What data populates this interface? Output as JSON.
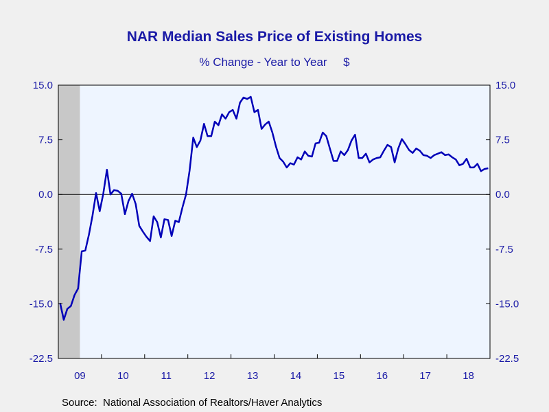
{
  "colors": {
    "page_background": "#f0f0f0",
    "plot_background": "#eef5ff",
    "series_line": "#0000b8",
    "text": "#1a1aa6",
    "recession_shade": "#c8c8c8"
  },
  "chart_data": {
    "type": "line",
    "title": "NAR Median Sales Price of Existing Homes",
    "subtitle": "% Change - Year to Year     $",
    "source": "Source:  National Association of Realtors/Haver Analytics",
    "ylim": [
      -22.5,
      15.0
    ],
    "y_ticks": [
      15.0,
      7.5,
      0.0,
      -7.5,
      -15.0,
      -22.5
    ],
    "y_tick_labels": [
      "15.0",
      "7.5",
      "0.0",
      "-7.5",
      "-15.0",
      "-22.5"
    ],
    "x_tick_labels": [
      "09",
      "10",
      "11",
      "12",
      "13",
      "14",
      "15",
      "16",
      "17",
      "18"
    ],
    "x_range": [
      "2009-01",
      "2018-12"
    ],
    "recession_shading": [
      "2009-01",
      "2009-06"
    ],
    "zero_line": true,
    "grid": false,
    "series": [
      {
        "start": "2009-01",
        "frequency": "monthly",
        "values": [
          -14.9,
          -17.2,
          -15.7,
          -15.3,
          -13.8,
          -12.9,
          -7.8,
          -7.7,
          -5.5,
          -2.9,
          0.2,
          -2.3,
          0.1,
          3.4,
          0.0,
          0.6,
          0.5,
          0.1,
          -2.7,
          -0.9,
          0.1,
          -1.3,
          -4.3,
          -5.1,
          -5.8,
          -6.4,
          -3.0,
          -3.8,
          -5.9,
          -3.4,
          -3.5,
          -5.7,
          -3.6,
          -3.8,
          -1.8,
          0.0,
          3.3,
          7.8,
          6.5,
          7.4,
          9.7,
          8.0,
          8.0,
          10.0,
          9.5,
          11.0,
          10.4,
          11.3,
          11.6,
          10.4,
          12.6,
          13.3,
          13.1,
          13.4,
          11.3,
          11.6,
          9.0,
          9.6,
          10.0,
          8.5,
          6.6,
          5.0,
          4.5,
          3.7,
          4.3,
          4.1,
          5.1,
          4.8,
          5.9,
          5.3,
          5.2,
          7.0,
          7.1,
          8.5,
          8.0,
          6.3,
          4.6,
          4.6,
          5.9,
          5.4,
          6.1,
          7.4,
          8.2,
          5.0,
          5.0,
          5.6,
          4.4,
          4.8,
          5.0,
          5.1,
          6.0,
          6.8,
          6.5,
          4.4,
          6.3,
          7.6,
          6.9,
          6.1,
          5.7,
          6.3,
          6.0,
          5.4,
          5.3,
          5.0,
          5.4,
          5.6,
          5.8,
          5.4,
          5.5,
          5.1,
          4.8,
          4.0,
          4.2,
          4.9,
          3.7,
          3.7,
          4.2,
          3.2,
          3.5,
          3.6
        ]
      }
    ]
  }
}
